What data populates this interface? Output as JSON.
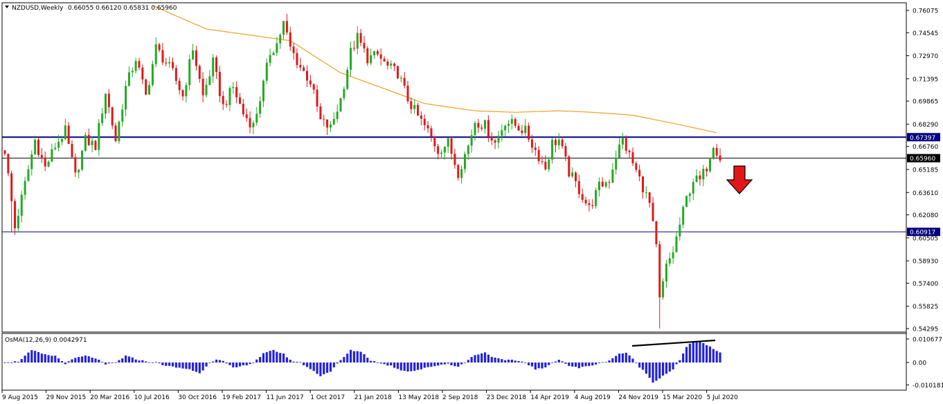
{
  "header": {
    "symbol_period": "NZDUSD,Weekly",
    "ohlc": "0.66055 0.66120 0.65831 0.65960"
  },
  "indicator": {
    "label": "OsMA(12,26,9) 0.0042971",
    "ticks": [
      "0.0106771",
      "0.00",
      "-0.0101815"
    ]
  },
  "colors": {
    "bull": "#22aa22",
    "bear": "#e01818",
    "ma": "#f0a020",
    "level": "#000080",
    "osma": "#2222dd",
    "current": "#000000"
  },
  "chart_data": {
    "type": "candlestick",
    "price_ticks": [
      "0.76075",
      "0.74545",
      "0.72970",
      "0.71395",
      "0.69865",
      "0.68290",
      "0.66760",
      "0.65185",
      "0.63610",
      "0.62080",
      "0.60505",
      "0.58930",
      "0.57400",
      "0.55825",
      "0.54295"
    ],
    "levels": [
      {
        "label": "0.67397",
        "value": 0.67397,
        "style": "navy-thick"
      },
      {
        "label": "0.65960",
        "value": 0.6596,
        "style": "current"
      },
      {
        "label": "0.60917",
        "value": 0.60917,
        "style": "navy-thin"
      }
    ],
    "date_labels": [
      "9 Aug 2015",
      "29 Nov 2015",
      "20 Mar 2016",
      "10 Jul 2016",
      "30 Oct 2016",
      "19 Feb 2017",
      "11 Jun 2017",
      "1 Oct 2017",
      "21 Jan 2018",
      "13 May 2018",
      "2 Sep 2018",
      "23 Dec 2018",
      "14 Apr 2019",
      "4 Aug 2019",
      "24 Nov 2019",
      "15 Mar 2020",
      "5 Jul 2020"
    ],
    "ylim": [
      0.5395,
      0.764
    ],
    "anchors": [
      [
        0,
        0.665
      ],
      [
        3,
        0.612
      ],
      [
        5,
        0.632
      ],
      [
        9,
        0.672
      ],
      [
        12,
        0.653
      ],
      [
        15,
        0.668
      ],
      [
        18,
        0.678
      ],
      [
        21,
        0.647
      ],
      [
        24,
        0.672
      ],
      [
        27,
        0.668
      ],
      [
        30,
        0.705
      ],
      [
        33,
        0.672
      ],
      [
        36,
        0.708
      ],
      [
        39,
        0.728
      ],
      [
        42,
        0.702
      ],
      [
        45,
        0.735
      ],
      [
        48,
        0.725
      ],
      [
        50,
        0.718
      ],
      [
        53,
        0.702
      ],
      [
        56,
        0.735
      ],
      [
        59,
        0.702
      ],
      [
        62,
        0.725
      ],
      [
        65,
        0.695
      ],
      [
        68,
        0.708
      ],
      [
        71,
        0.69
      ],
      [
        74,
        0.682
      ],
      [
        77,
        0.71
      ],
      [
        79,
        0.732
      ],
      [
        81,
        0.738
      ],
      [
        83,
        0.752
      ],
      [
        85,
        0.735
      ],
      [
        88,
        0.722
      ],
      [
        91,
        0.712
      ],
      [
        94,
        0.685
      ],
      [
        97,
        0.68
      ],
      [
        100,
        0.7
      ],
      [
        103,
        0.732
      ],
      [
        105,
        0.742
      ],
      [
        108,
        0.728
      ],
      [
        111,
        0.73
      ],
      [
        114,
        0.722
      ],
      [
        117,
        0.718
      ],
      [
        120,
        0.7
      ],
      [
        123,
        0.688
      ],
      [
        126,
        0.678
      ],
      [
        129,
        0.665
      ],
      [
        132,
        0.67
      ],
      [
        135,
        0.65
      ],
      [
        138,
        0.668
      ],
      [
        140,
        0.685
      ],
      [
        143,
        0.682
      ],
      [
        146,
        0.67
      ],
      [
        149,
        0.685
      ],
      [
        152,
        0.682
      ],
      [
        155,
        0.678
      ],
      [
        158,
        0.665
      ],
      [
        161,
        0.653
      ],
      [
        163,
        0.67
      ],
      [
        165,
        0.672
      ],
      [
        168,
        0.65
      ],
      [
        171,
        0.638
      ],
      [
        174,
        0.625
      ],
      [
        177,
        0.64
      ],
      [
        180,
        0.645
      ],
      [
        182,
        0.662
      ],
      [
        184,
        0.672
      ],
      [
        187,
        0.656
      ],
      [
        190,
        0.64
      ],
      [
        192,
        0.628
      ],
      [
        194,
        0.598
      ],
      [
        195,
        0.562
      ],
      [
        197,
        0.585
      ],
      [
        199,
        0.596
      ],
      [
        201,
        0.614
      ],
      [
        203,
        0.632
      ],
      [
        205,
        0.645
      ],
      [
        207,
        0.644
      ],
      [
        209,
        0.654
      ],
      [
        211,
        0.67
      ],
      [
        213,
        0.66
      ]
    ],
    "ma_anchors": [
      [
        44,
        0.764
      ],
      [
        60,
        0.748
      ],
      [
        85,
        0.74
      ],
      [
        100,
        0.718
      ],
      [
        112,
        0.708
      ],
      [
        125,
        0.697
      ],
      [
        140,
        0.692
      ],
      [
        152,
        0.691
      ],
      [
        165,
        0.692
      ],
      [
        175,
        0.691
      ],
      [
        187,
        0.689
      ],
      [
        200,
        0.683
      ],
      [
        212,
        0.677
      ]
    ],
    "osma_anchors": [
      [
        0,
        0.0
      ],
      [
        4,
        0.0005
      ],
      [
        8,
        0.0055
      ],
      [
        12,
        0.0035
      ],
      [
        15,
        0.003
      ],
      [
        18,
        -0.0005
      ],
      [
        21,
        0.002
      ],
      [
        24,
        0.003
      ],
      [
        27,
        0.002
      ],
      [
        30,
        -0.001
      ],
      [
        33,
        0.0
      ],
      [
        36,
        0.003
      ],
      [
        39,
        0.0015
      ],
      [
        42,
        0.0005
      ],
      [
        45,
        0.0
      ],
      [
        48,
        -0.0015
      ],
      [
        52,
        -0.0025
      ],
      [
        55,
        -0.003
      ],
      [
        58,
        -0.005
      ],
      [
        61,
        0.0
      ],
      [
        63,
        0.0015
      ],
      [
        65,
        0.0005
      ],
      [
        68,
        -0.0025
      ],
      [
        71,
        -0.0015
      ],
      [
        74,
        0.0
      ],
      [
        77,
        0.004
      ],
      [
        80,
        0.0055
      ],
      [
        83,
        0.004
      ],
      [
        85,
        0.001
      ],
      [
        88,
        0.0
      ],
      [
        91,
        -0.003
      ],
      [
        94,
        -0.006
      ],
      [
        97,
        -0.004
      ],
      [
        100,
        0.001
      ],
      [
        103,
        0.0055
      ],
      [
        106,
        0.005
      ],
      [
        109,
        0.001
      ],
      [
        112,
        -0.0005
      ],
      [
        115,
        -0.0015
      ],
      [
        118,
        -0.0035
      ],
      [
        121,
        -0.004
      ],
      [
        124,
        -0.003
      ],
      [
        128,
        -0.0015
      ],
      [
        132,
        -0.0005
      ],
      [
        135,
        -0.002
      ],
      [
        137,
        0.0
      ],
      [
        140,
        0.0035
      ],
      [
        143,
        0.0045
      ],
      [
        146,
        0.002
      ],
      [
        149,
        0.001
      ],
      [
        152,
        0.001
      ],
      [
        155,
        0.0
      ],
      [
        158,
        -0.003
      ],
      [
        161,
        -0.0025
      ],
      [
        163,
        0.0
      ],
      [
        165,
        0.0015
      ],
      [
        168,
        -0.0015
      ],
      [
        171,
        -0.0025
      ],
      [
        174,
        -0.0015
      ],
      [
        177,
        -0.0005
      ],
      [
        180,
        0.001
      ],
      [
        183,
        0.004
      ],
      [
        185,
        0.0045
      ],
      [
        187,
        0.0015
      ],
      [
        189,
        -0.002
      ],
      [
        191,
        -0.005
      ],
      [
        193,
        -0.009
      ],
      [
        195,
        -0.007
      ],
      [
        197,
        -0.005
      ],
      [
        199,
        -0.003
      ],
      [
        201,
        0.001
      ],
      [
        203,
        0.007
      ],
      [
        205,
        0.0095
      ],
      [
        207,
        0.0095
      ],
      [
        209,
        0.008
      ],
      [
        211,
        0.006
      ],
      [
        213,
        0.0043
      ]
    ],
    "annotations": [
      "down-arrow",
      "divergence-line"
    ]
  }
}
